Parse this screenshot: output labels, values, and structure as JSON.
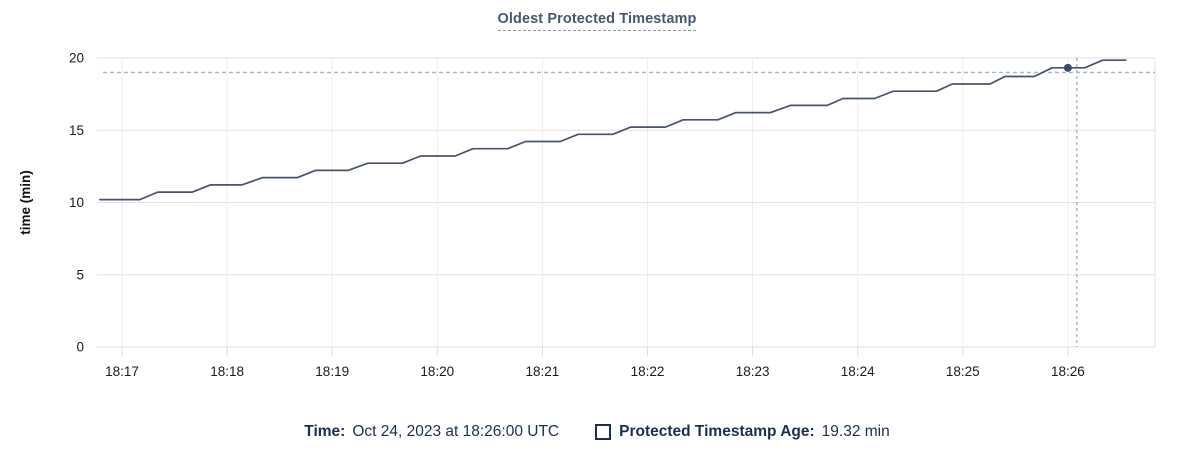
{
  "chart_data": {
    "type": "line",
    "title": "Oldest Protected Timestamp",
    "ylabel": "time (min)",
    "x_tick_labels": [
      "18:17",
      "18:18",
      "18:19",
      "18:20",
      "18:21",
      "18:22",
      "18:23",
      "18:24",
      "18:25",
      "18:26"
    ],
    "y_ticks": [
      0,
      5,
      10,
      15,
      20
    ],
    "ylim": [
      0,
      20
    ],
    "x_range_minutes_from_1817": [
      -0.21,
      9.62
    ],
    "grid": true,
    "legend_position": "bottom",
    "series": [
      {
        "name": "Protected Timestamp Age",
        "unit": "min",
        "color": "#46546e",
        "points_t_minutes_value": [
          [
            -0.21,
            10.2
          ],
          [
            0.17,
            10.2
          ],
          [
            0.34,
            10.72
          ],
          [
            0.67,
            10.72
          ],
          [
            0.84,
            11.22
          ],
          [
            1.14,
            11.22
          ],
          [
            1.34,
            11.72
          ],
          [
            1.67,
            11.72
          ],
          [
            1.84,
            12.22
          ],
          [
            2.15,
            12.22
          ],
          [
            2.34,
            12.72
          ],
          [
            2.67,
            12.72
          ],
          [
            2.84,
            13.22
          ],
          [
            3.17,
            13.22
          ],
          [
            3.34,
            13.72
          ],
          [
            3.67,
            13.72
          ],
          [
            3.84,
            14.22
          ],
          [
            4.17,
            14.22
          ],
          [
            4.34,
            14.72
          ],
          [
            4.67,
            14.72
          ],
          [
            4.84,
            15.22
          ],
          [
            5.17,
            15.22
          ],
          [
            5.34,
            15.72
          ],
          [
            5.67,
            15.72
          ],
          [
            5.84,
            16.22
          ],
          [
            6.17,
            16.22
          ],
          [
            6.36,
            16.72
          ],
          [
            6.71,
            16.72
          ],
          [
            6.86,
            17.2
          ],
          [
            7.16,
            17.2
          ],
          [
            7.34,
            17.7
          ],
          [
            7.75,
            17.7
          ],
          [
            7.9,
            18.2
          ],
          [
            8.26,
            18.2
          ],
          [
            8.4,
            18.72
          ],
          [
            8.68,
            18.72
          ],
          [
            8.85,
            19.32
          ],
          [
            9.16,
            19.32
          ],
          [
            9.33,
            19.85
          ],
          [
            9.55,
            19.85
          ]
        ]
      }
    ],
    "hover": {
      "crosshair_t": 9.085,
      "crosshair_value": 19.0,
      "point_t": 9.0,
      "point_value": 19.32
    },
    "colors": {
      "title": "#475872",
      "series_line": "#46546e",
      "hover_dot": "#3c4c68",
      "crosshair": "#a5b6c2",
      "grid_horizontal": "#e2e2e2",
      "grid_vertical": "#ededed",
      "axis_tick": "#dcdcdc",
      "tick_label": "#1b1b1b",
      "footer_text": "#1c2f4e"
    }
  },
  "footer": {
    "time_label": "Time:",
    "time_value": "Oct 24, 2023 at 18:26:00 UTC",
    "series_label": "Protected Timestamp Age:",
    "series_value": "19.32 min"
  }
}
